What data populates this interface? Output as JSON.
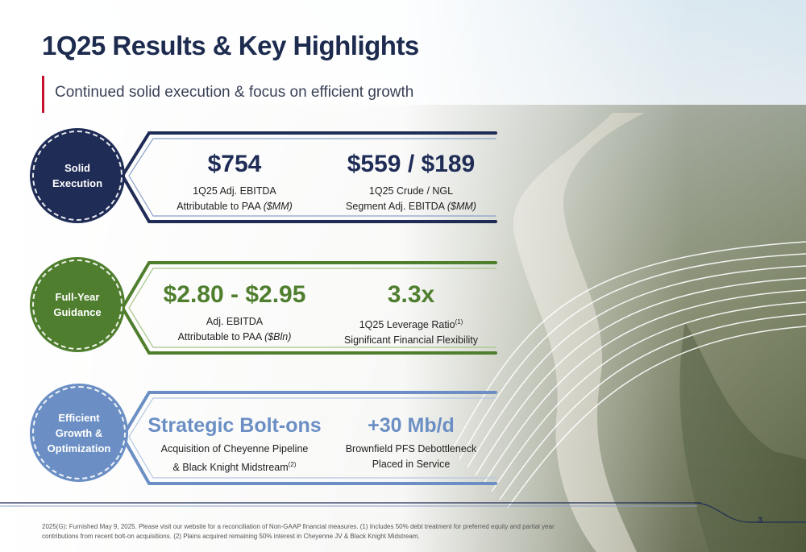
{
  "title": "1Q25 Results & Key Highlights",
  "subtitle": "Continued solid execution & focus on efficient growth",
  "colors": {
    "navy": "#1f2c56",
    "green": "#4f7f2e",
    "blue": "#6b8fc4",
    "accent": "#c8102e"
  },
  "rows": [
    {
      "label": "Solid\nExecution",
      "metrics": [
        {
          "value": "$754",
          "line1": "1Q25 Adj. EBITDA",
          "line2": "Attributable to PAA",
          "unit": "($MM)"
        },
        {
          "value": "$559 / $189",
          "line1": "1Q25 Crude / NGL",
          "line2": "Segment Adj. EBITDA",
          "unit": "($MM)"
        }
      ]
    },
    {
      "label": "Full-Year\nGuidance",
      "metrics": [
        {
          "value": "$2.80 - $2.95",
          "line1": "Adj. EBITDA",
          "line2": "Attributable to PAA",
          "unit": "($Bln)"
        },
        {
          "value": "3.3x",
          "line1": "1Q25 Leverage Ratio",
          "sup1": "(1)",
          "line2": "Significant Financial Flexibility"
        }
      ]
    },
    {
      "label": "Efficient\nGrowth &\nOptimization",
      "metrics": [
        {
          "value": "Strategic Bolt-ons",
          "line1": "Acquisition of Cheyenne Pipeline",
          "line2": "& Black Knight Midstream",
          "sup2": "(2)"
        },
        {
          "value": "+30 Mb/d",
          "line1": "Brownfield PFS Debottleneck",
          "line2": "Placed in Service"
        }
      ]
    }
  ],
  "footnote": "2025(G): Furnished May 9, 2025. Please visit our website for a reconciliation of Non-GAAP financial measures. (1) Includes 50% debt treatment for preferred equity and partial year contributions from recent bolt-on acquisitions. (2) Plains acquired remaining 50% interest in Cheyenne JV & Black Knight Midstream.",
  "page_number": "3"
}
